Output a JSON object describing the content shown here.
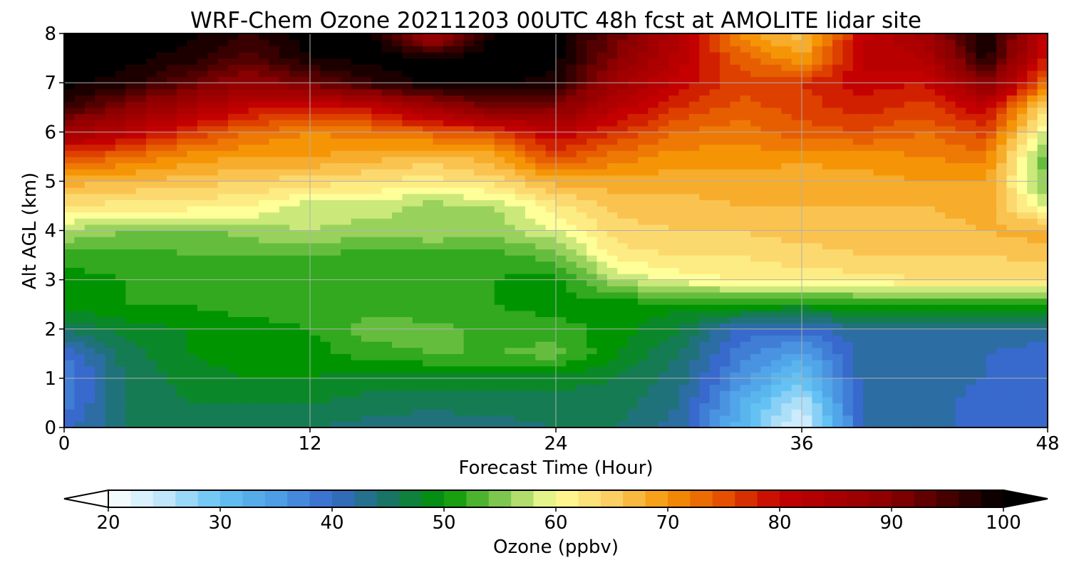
{
  "chart_data": {
    "type": "heatmap",
    "title": "WRF-Chem Ozone  20211203 00UTC 48h fcst at AMOLITE lidar site",
    "xlabel": "Forecast Time (Hour)",
    "ylabel": "Alt AGL (km)",
    "xlim": [
      0,
      48
    ],
    "ylim": [
      0,
      8
    ],
    "xticks": [
      0,
      12,
      24,
      36,
      48
    ],
    "yticks": [
      0,
      1,
      2,
      3,
      4,
      5,
      6,
      7,
      8
    ],
    "grid": true,
    "x": [
      0,
      3,
      6,
      9,
      12,
      15,
      18,
      21,
      24,
      27,
      30,
      33,
      36,
      39,
      42,
      45,
      48
    ],
    "y": [
      0,
      0.5,
      1,
      1.5,
      2,
      2.5,
      3,
      3.5,
      4,
      4.5,
      5,
      5.5,
      6,
      6.5,
      7,
      7.5,
      8
    ],
    "z": [
      [
        40,
        45,
        46,
        46,
        45,
        44,
        43,
        44,
        45,
        45,
        42,
        32,
        22,
        41,
        42,
        40,
        40
      ],
      [
        38,
        45,
        47,
        47,
        47,
        46,
        46,
        46,
        46,
        46,
        43,
        33,
        25,
        42,
        42,
        40,
        40
      ],
      [
        37,
        45,
        48,
        49,
        49,
        48,
        48,
        48,
        48,
        47,
        44,
        36,
        30,
        42,
        42,
        41,
        40
      ],
      [
        39,
        46,
        49,
        50,
        50,
        52,
        53,
        53,
        54,
        49,
        45,
        38,
        34,
        42,
        42,
        41,
        40
      ],
      [
        45,
        48,
        49,
        50,
        51,
        54,
        54,
        52,
        52,
        50,
        47,
        40,
        40,
        43,
        43,
        42,
        42
      ],
      [
        50,
        51,
        51,
        52,
        52,
        52,
        51,
        51,
        50,
        50,
        50,
        51,
        50,
        51,
        51,
        51,
        51
      ],
      [
        50,
        51,
        52,
        52,
        52,
        51,
        51,
        51,
        50,
        57,
        60,
        61,
        62,
        62,
        63,
        63,
        63
      ],
      [
        52,
        52,
        53,
        53,
        53,
        52,
        52,
        52,
        54,
        62,
        63,
        63,
        64,
        65,
        65,
        65,
        66
      ],
      [
        57,
        55,
        54,
        56,
        57,
        56,
        57,
        56,
        59,
        64,
        65,
        65,
        66,
        66,
        66,
        67,
        68
      ],
      [
        63,
        62,
        62,
        61,
        58,
        58,
        56,
        57,
        62,
        66,
        66,
        67,
        67,
        67,
        67,
        68,
        58
      ],
      [
        68,
        67,
        66,
        65,
        64,
        63,
        62,
        64,
        68,
        68,
        68,
        68,
        67,
        68,
        69,
        69,
        54
      ],
      [
        75,
        73,
        70,
        69,
        69,
        68,
        66,
        68,
        76,
        72,
        70,
        70,
        70,
        70,
        71,
        72,
        53
      ],
      [
        86,
        82,
        77,
        73,
        71,
        72,
        74,
        76,
        81,
        77,
        73,
        72,
        74,
        75,
        73,
        76,
        58
      ],
      [
        96,
        90,
        85,
        80,
        78,
        80,
        86,
        92,
        90,
        82,
        77,
        74,
        76,
        78,
        76,
        81,
        63
      ],
      [
        100,
        98,
        93,
        88,
        92,
        97,
        100,
        100,
        98,
        86,
        80,
        76,
        77,
        80,
        79,
        90,
        72
      ],
      [
        100,
        100,
        98,
        94,
        99,
        100,
        100,
        100,
        100,
        90,
        82,
        74,
        69,
        82,
        83,
        98,
        78
      ],
      [
        100,
        100,
        100,
        97,
        100,
        100,
        84,
        100,
        100,
        92,
        83,
        70,
        66,
        80,
        86,
        100,
        80
      ]
    ],
    "colorbar": {
      "label": "Ozone  (ppbv)",
      "min": 20,
      "max": 100,
      "ticks": [
        20,
        30,
        40,
        50,
        60,
        70,
        80,
        90,
        100
      ],
      "extend": "both",
      "stops": [
        {
          "v": 20,
          "c": "#ffffff"
        },
        {
          "v": 25,
          "c": "#bfe6fb"
        },
        {
          "v": 30,
          "c": "#63c2f3"
        },
        {
          "v": 35,
          "c": "#4d9ee6"
        },
        {
          "v": 40,
          "c": "#3869cc"
        },
        {
          "v": 45,
          "c": "#1a7466"
        },
        {
          "v": 50,
          "c": "#009500"
        },
        {
          "v": 55,
          "c": "#7ec74e"
        },
        {
          "v": 60,
          "c": "#ffff99"
        },
        {
          "v": 65,
          "c": "#fbcf63"
        },
        {
          "v": 70,
          "c": "#f59506"
        },
        {
          "v": 75,
          "c": "#e45000"
        },
        {
          "v": 80,
          "c": "#c40000"
        },
        {
          "v": 90,
          "c": "#8b0000"
        },
        {
          "v": 100,
          "c": "#000000"
        }
      ]
    }
  }
}
